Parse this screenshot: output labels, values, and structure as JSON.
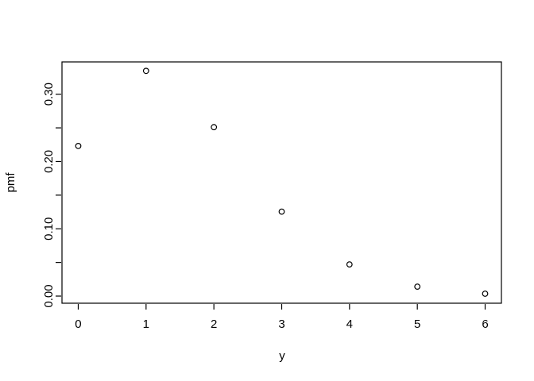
{
  "figure": {
    "background_color": "#ffffff",
    "foreground_color": "#000000"
  },
  "chart_data": {
    "type": "scatter",
    "marker": "open-circle",
    "x": [
      0,
      1,
      2,
      3,
      4,
      5,
      6
    ],
    "y": [
      0.2231,
      0.3347,
      0.251,
      0.1255,
      0.0471,
      0.0141,
      0.0035
    ],
    "title": "",
    "xlabel": "y",
    "ylabel": "pmf",
    "xlim": [
      -0.24,
      6.24
    ],
    "ylim": [
      -0.0106,
      0.348
    ],
    "x_ticks": [
      0,
      1,
      2,
      3,
      4,
      5,
      6
    ],
    "x_tick_labels": [
      "0",
      "1",
      "2",
      "3",
      "4",
      "5",
      "6"
    ],
    "y_ticks": [
      0.0,
      0.05,
      0.1,
      0.15,
      0.2,
      0.25,
      0.3
    ],
    "y_tick_labels": [
      "0.00",
      "",
      "0.10",
      "",
      "0.20",
      "",
      "0.30"
    ],
    "grid": false,
    "legend": false
  }
}
